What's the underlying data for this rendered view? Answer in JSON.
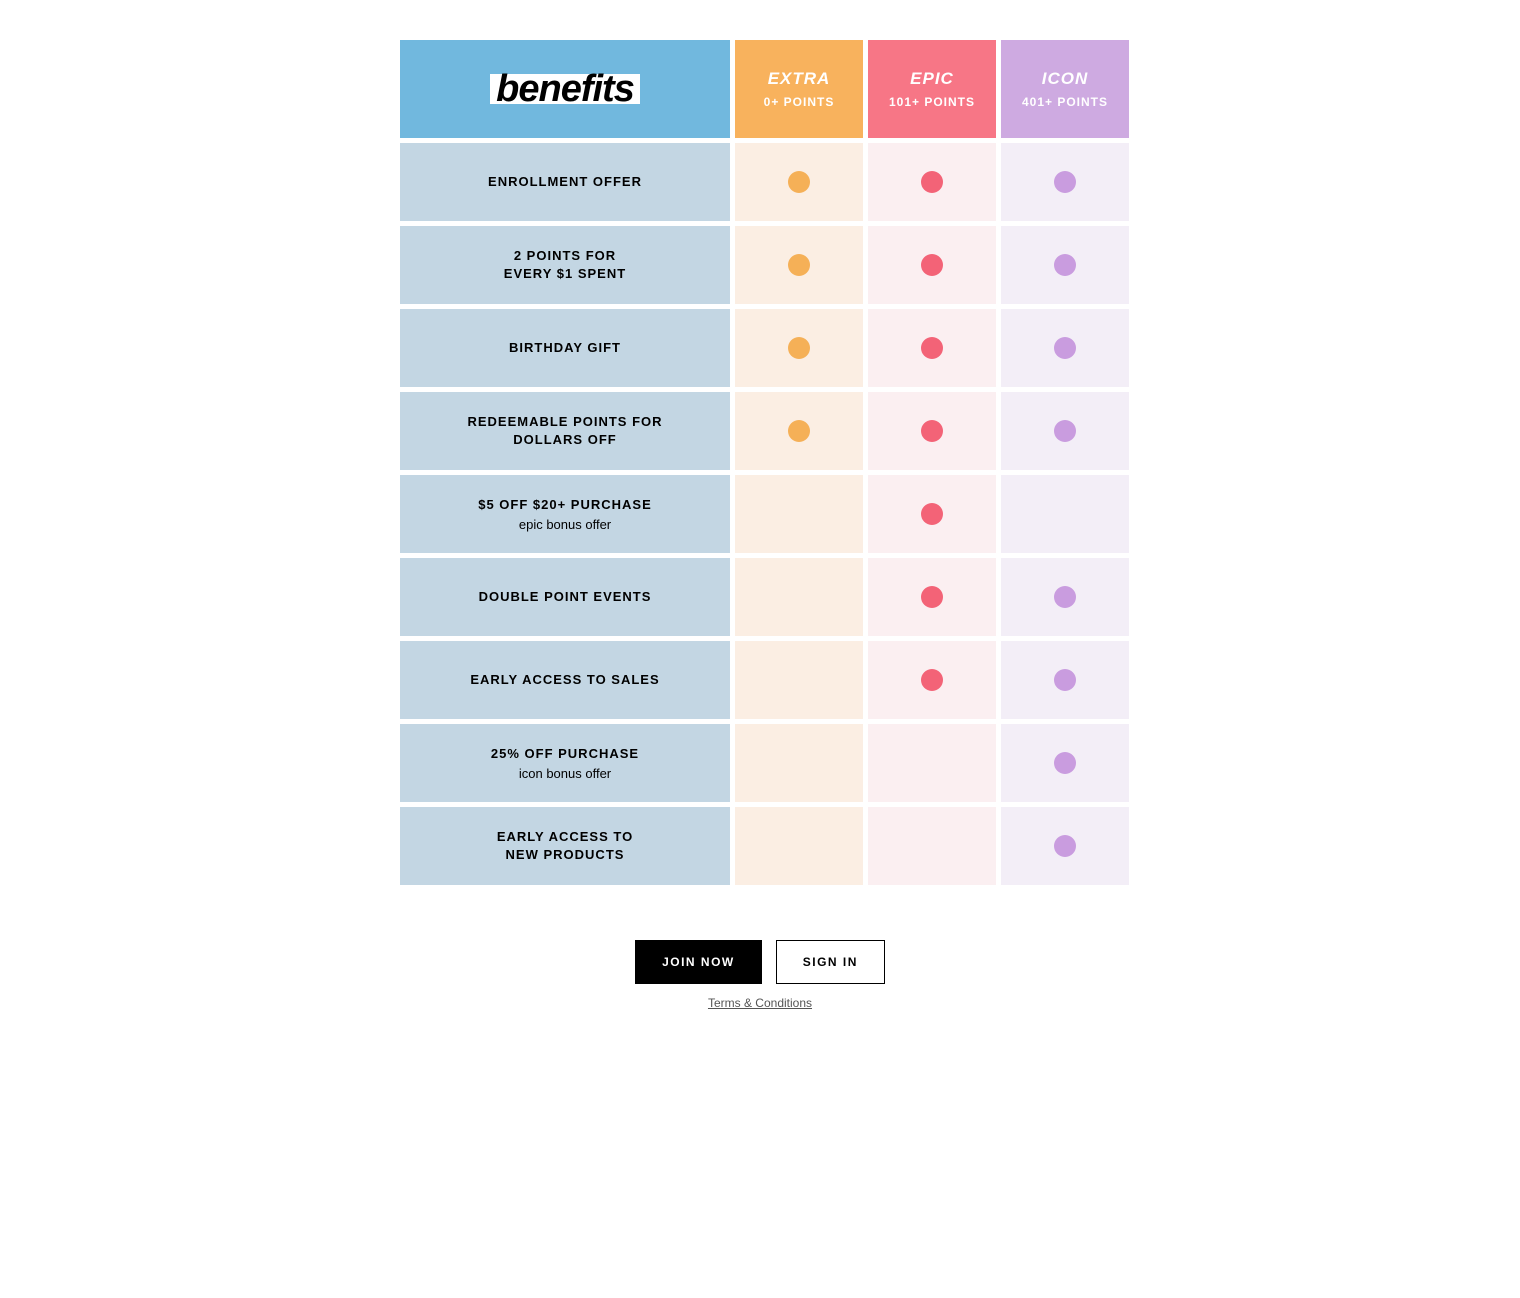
{
  "header": {
    "benefits_label": "benefits",
    "tiers": [
      {
        "name": "EXTRA",
        "points": "0+ POINTS",
        "header_bg": "#f8b25d",
        "cell_bg": "#fbeee3",
        "dot_color": "#f5b057"
      },
      {
        "name": "EPIC",
        "points": "101+ POINTS",
        "header_bg": "#f77686",
        "cell_bg": "#fbeff1",
        "dot_color": "#f36377"
      },
      {
        "name": "ICON",
        "points": "401+ POINTS",
        "header_bg": "#ceaae1",
        "cell_bg": "#f3eef7",
        "dot_color": "#c99cdf"
      }
    ]
  },
  "rows": [
    {
      "title": "ENROLLMENT OFFER",
      "sub": "",
      "dots": [
        true,
        true,
        true
      ]
    },
    {
      "title": "2 POINTS FOR\nEVERY $1 SPENT",
      "sub": "",
      "dots": [
        true,
        true,
        true
      ]
    },
    {
      "title": "BIRTHDAY GIFT",
      "sub": "",
      "dots": [
        true,
        true,
        true
      ]
    },
    {
      "title": "REDEEMABLE POINTS FOR\nDOLLARS OFF",
      "sub": "",
      "dots": [
        true,
        true,
        true
      ]
    },
    {
      "title": "$5 OFF $20+ PURCHASE",
      "sub": "epic bonus offer",
      "dots": [
        false,
        true,
        false
      ]
    },
    {
      "title": "DOUBLE POINT EVENTS",
      "sub": "",
      "dots": [
        false,
        true,
        true
      ]
    },
    {
      "title": "EARLY ACCESS TO SALES",
      "sub": "",
      "dots": [
        false,
        true,
        true
      ]
    },
    {
      "title": "25% OFF PURCHASE",
      "sub": "icon bonus offer",
      "dots": [
        false,
        false,
        true
      ]
    },
    {
      "title": "EARLY ACCESS TO\nNEW PRODUCTS",
      "sub": "",
      "dots": [
        false,
        false,
        true
      ]
    }
  ],
  "footer": {
    "join_label": "JOIN NOW",
    "signin_label": "SIGN IN",
    "terms_label": "Terms & Conditions"
  },
  "colors": {
    "benefits_header_bg": "#71b8de",
    "row_label_bg": "#c3d6e3"
  }
}
